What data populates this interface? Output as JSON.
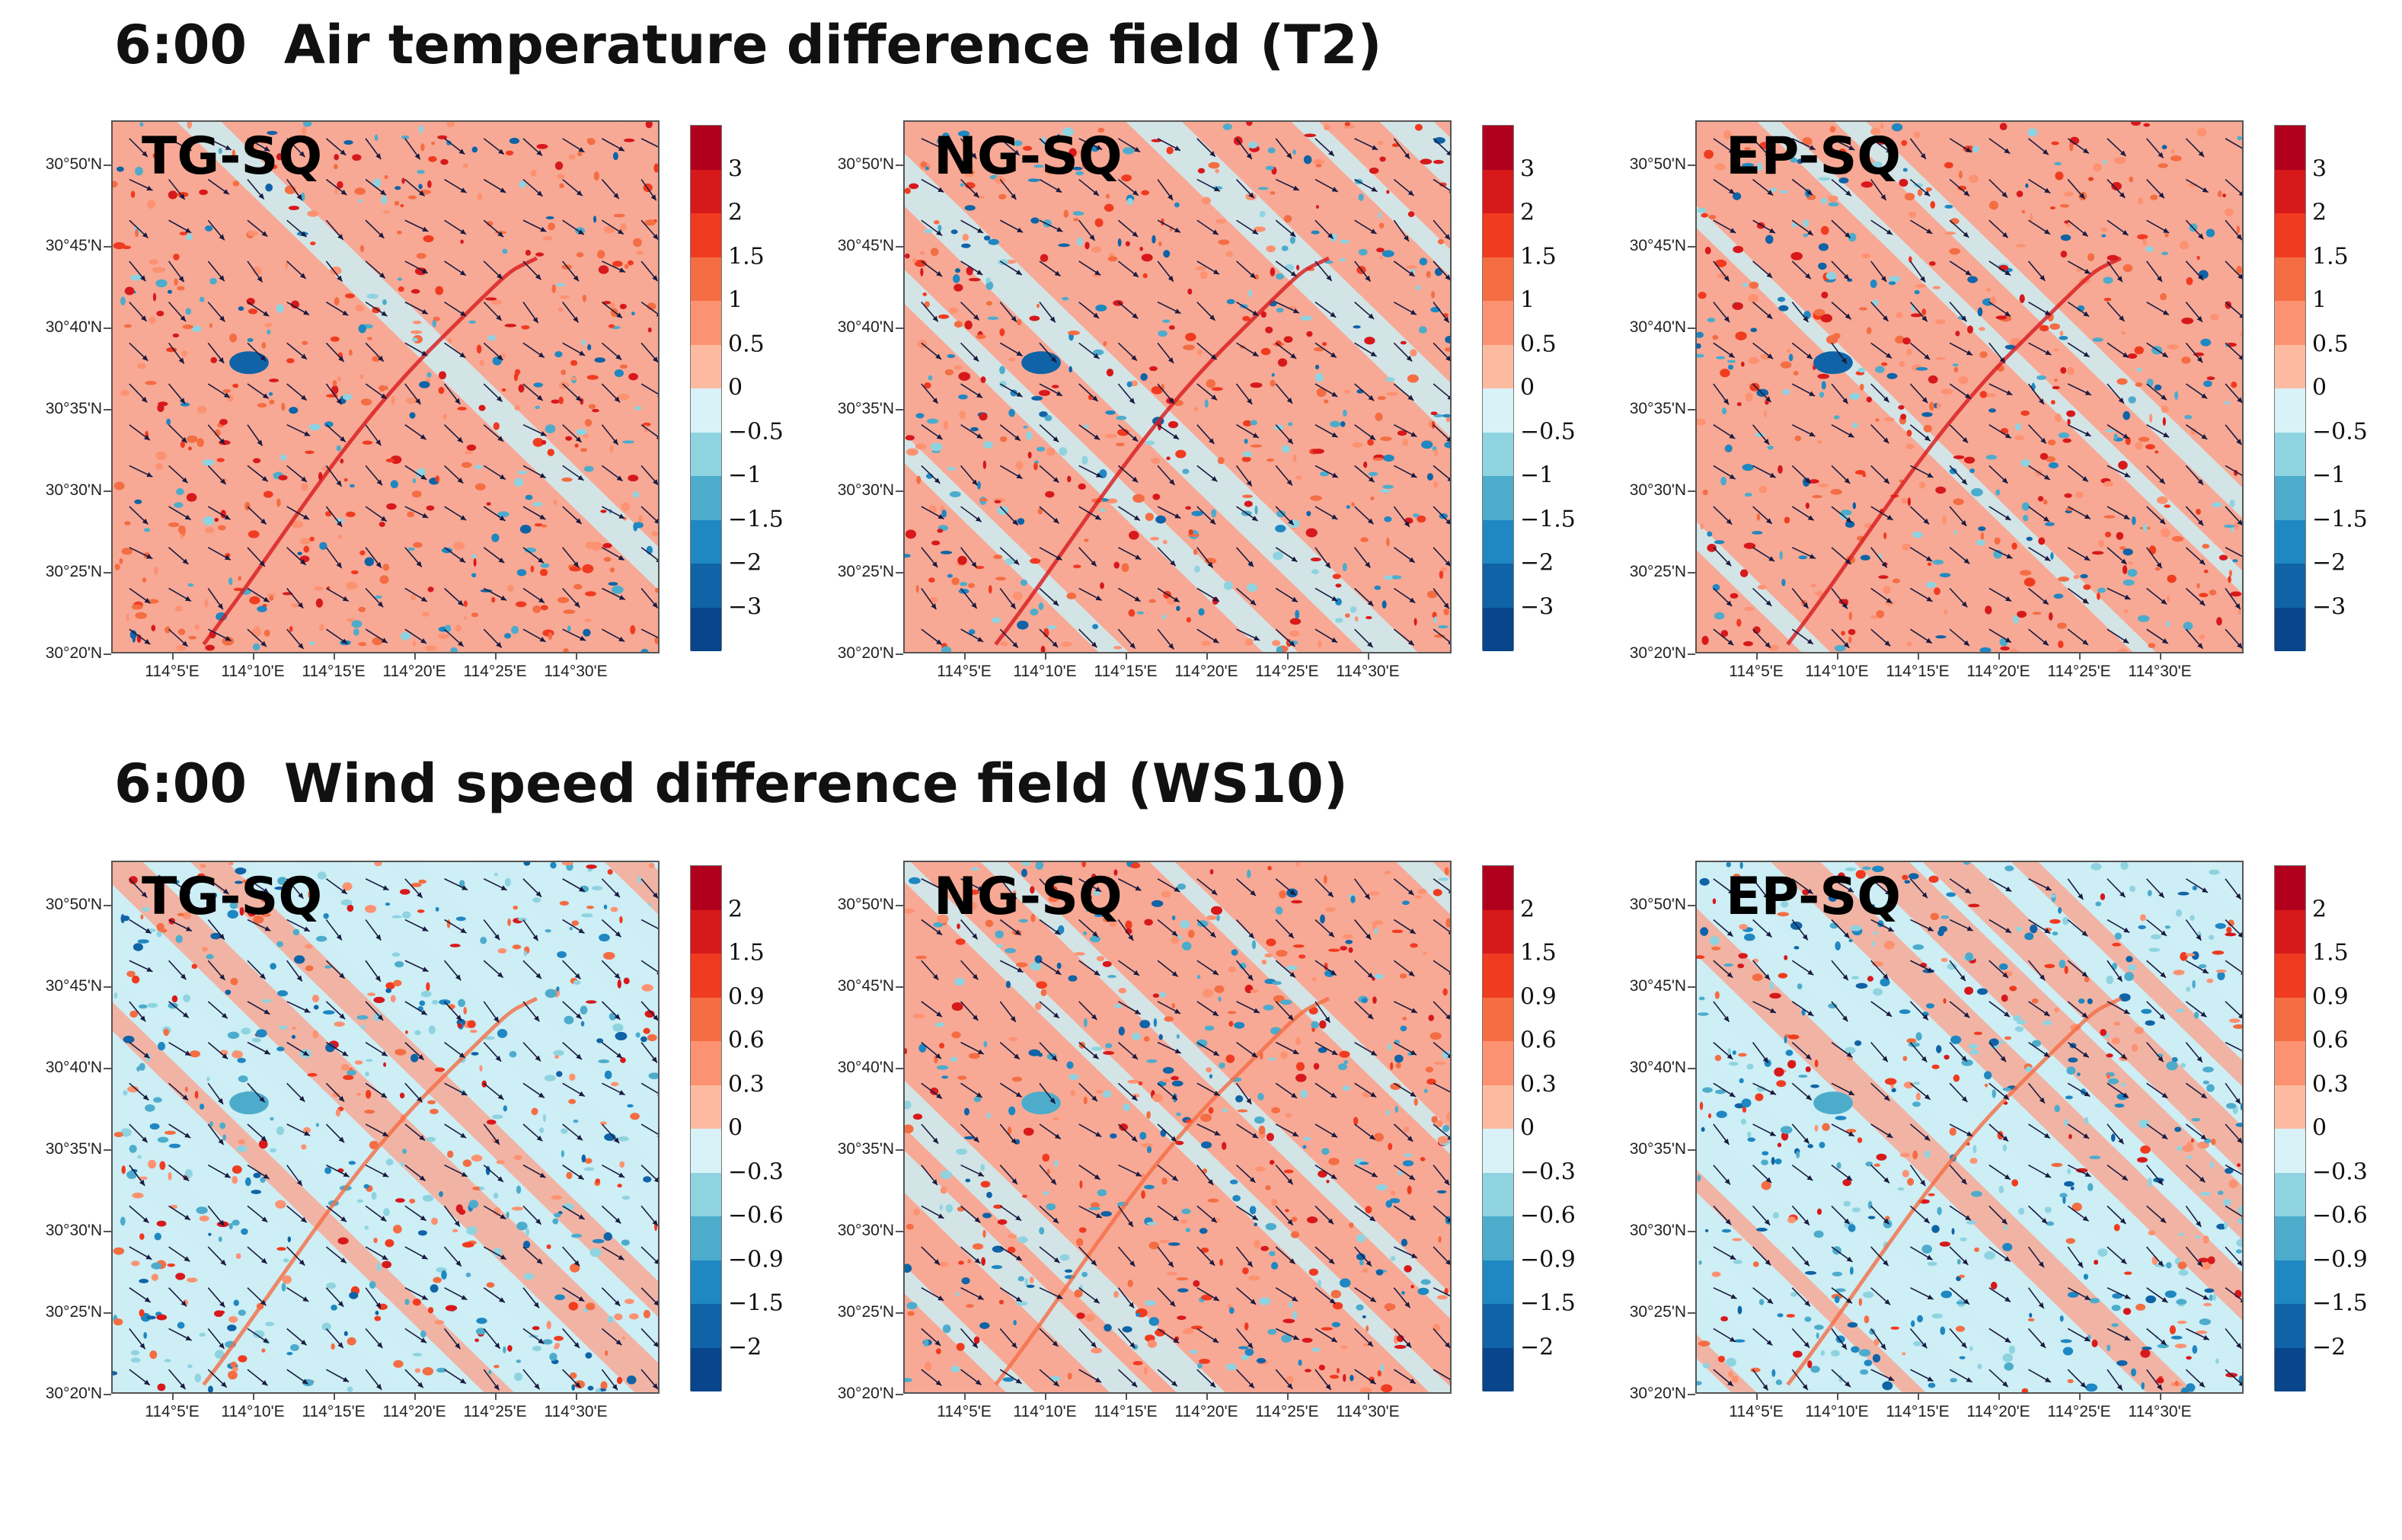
{
  "titles": {
    "top": "6:00  Air temperature difference field (T2)",
    "bottom": "6:00  Wind speed difference field (WS10)"
  },
  "lat_labels": [
    "30°50'N",
    "30°45'N",
    "30°40'N",
    "30°35'N",
    "30°30'N",
    "30°25'N",
    "30°20'N"
  ],
  "lon_labels": [
    "114°5'E",
    "114°10'E",
    "114°15'E",
    "114°20'E",
    "114°25'E",
    "114°30'E"
  ],
  "colorbar_palette": [
    "#b0001e",
    "#d7191c",
    "#f03b20",
    "#f46d43",
    "#fc9272",
    "#fcbba1",
    "#d9f2f7",
    "#8fd3e0",
    "#4daccc",
    "#1f87c2",
    "#0f63a6",
    "#08458a"
  ],
  "rows": [
    {
      "variable": "T2",
      "levels": [
        "3",
        "2",
        "1.5",
        "1",
        "0.5",
        "0",
        "-0.5",
        "-1",
        "-1.5",
        "-2",
        "-3"
      ],
      "panels": [
        {
          "label": "TG-SQ",
          "warm_share": 0.72
        },
        {
          "label": "NG-SQ",
          "warm_share": 0.6
        },
        {
          "label": "EP-SQ",
          "warm_share": 0.66
        }
      ]
    },
    {
      "variable": "WS10",
      "levels": [
        "2",
        "1.5",
        "0.9",
        "0.6",
        "0.3",
        "0",
        "-0.3",
        "-0.6",
        "-0.9",
        "-1.5",
        "-2"
      ],
      "panels": [
        {
          "label": "TG-SQ",
          "warm_share": 0.45
        },
        {
          "label": "NG-SQ",
          "warm_share": 0.55
        },
        {
          "label": "EP-SQ",
          "warm_share": 0.35
        }
      ]
    }
  ],
  "legend_title": ""
}
